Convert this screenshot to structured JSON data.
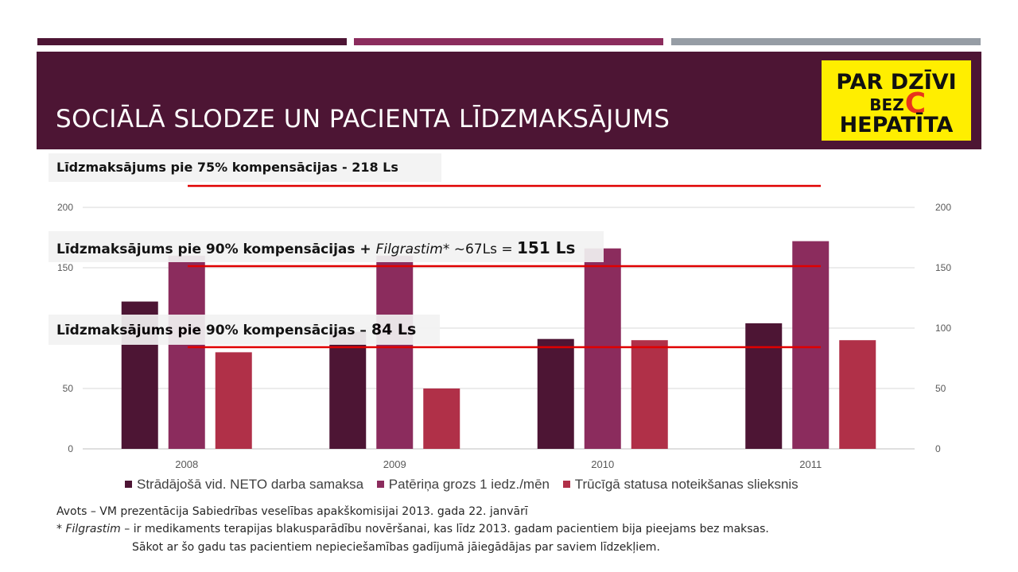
{
  "title": "SOCIĀLĀ SLODZE UN PACIENTA LĪDZMAKSĀJUMS",
  "logo": {
    "line1": "PAR DZĪVI",
    "line2": "BEZ",
    "letter": "C",
    "line3": "HEPATĪTA"
  },
  "colors": {
    "stripe1": "#4d1534",
    "stripe2": "#8b2c5d",
    "stripe3": "#969da5",
    "header_bg": "#4d1534",
    "logo_bg": "#ffee00",
    "logo_c": "#e8341c",
    "series1": "#4d1534",
    "series2": "#8b2c5d",
    "series3": "#b03048",
    "reference_line": "#e00000"
  },
  "callouts": {
    "c1": {
      "text": "Līdzmaksājums pie 75% kompensācijas - 218 Ls"
    },
    "c2": {
      "pre": "Līdzmaksājums pie 90% kompensācijas + ",
      "ital": "Filgrastim",
      "mid": "* ~67Ls = ",
      "bold": "151 Ls"
    },
    "c3": {
      "pre": "Līdzmaksājums pie 90% kompensācijas – ",
      "bold": "84 Ls"
    }
  },
  "chart_data": {
    "type": "bar",
    "categories": [
      "2008",
      "2009",
      "2010",
      "2011"
    ],
    "series": [
      {
        "name": "Strādājošā vid. NETO darba samaksa",
        "values": [
          122,
          97,
          91,
          104
        ]
      },
      {
        "name": "Patēriņa grozs 1 iedz./mēn",
        "values": [
          160,
          160,
          166,
          172
        ]
      },
      {
        "name": "Trūcīgā statusa noteikšanas slieksnis",
        "values": [
          80,
          50,
          90,
          90
        ]
      }
    ],
    "ylim": [
      0,
      200
    ],
    "yticks": [
      0,
      50,
      100,
      150,
      200
    ],
    "secondary_yticks": [
      0,
      50,
      100,
      150,
      200
    ],
    "grid": true,
    "legend_position": "bottom",
    "reference_lines": [
      218,
      151,
      84
    ]
  },
  "source": {
    "line1": "Avots – VM prezentācija Sabiedrības veselības apakškomisijai 2013. gada 22. janvārī",
    "line2_ital": "Filgrastim",
    "line2_pre": "* ",
    "line2_rest": " – ir medikaments terapijas blakusparādību novēršanai, kas līdz 2013. gadam pacientiem bija pieejams bez maksas.",
    "line3": "Sākot ar šo gadu tas pacientiem nepieciešamības gadījumā jāiegādājas par saviem līdzekļiem."
  }
}
